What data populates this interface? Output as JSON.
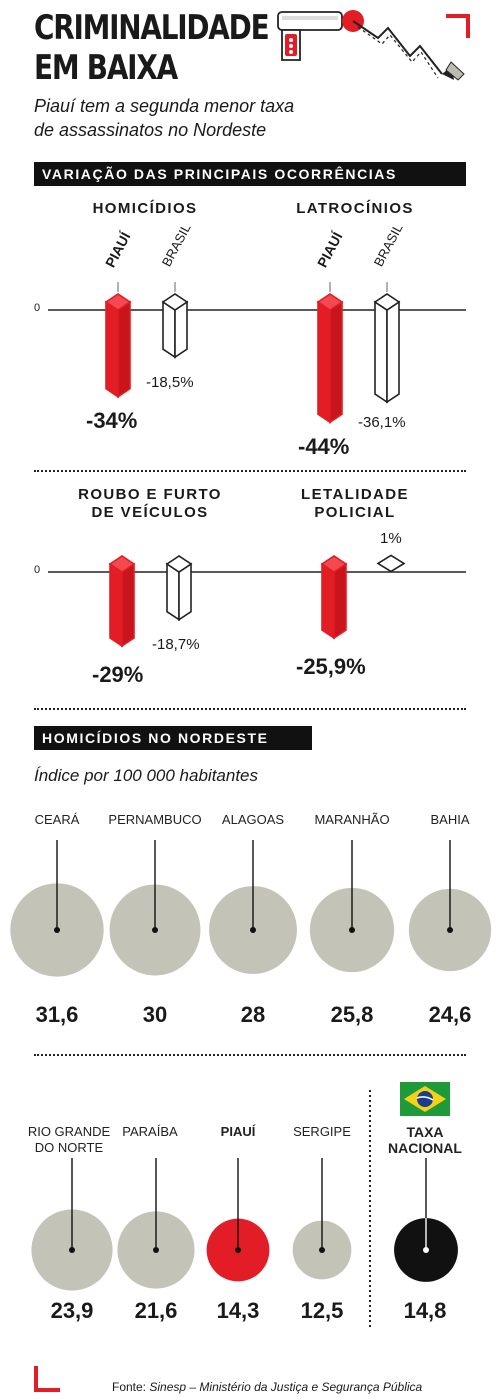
{
  "header": {
    "title_line1": "CRIMINALIDADE",
    "title_line2": "EM BAIXA",
    "subtitle_line1": "Piauí tem a segunda menor taxa",
    "subtitle_line2": "de assassinatos no Nordeste"
  },
  "section1": {
    "title": "VARIAÇÃO DAS PRINCIPAIS OCORRÊNCIAS",
    "zero_label": "0"
  },
  "section2": {
    "title": "HOMICÍDIOS NO NORDESTE",
    "index_label": "Índice por 100 000 habitantes"
  },
  "footer": {
    "source_prefix": "Fonte:",
    "source_text": "Sinesp – Ministério da Justiça e Segurança Pública"
  },
  "colors": {
    "red": "#e31d25",
    "gray": "#bdbcb0",
    "black": "#111111"
  },
  "chart_data": [
    {
      "type": "bar",
      "title": "HOMICÍDIOS",
      "series": [
        {
          "name": "PIAUÍ",
          "value": -34,
          "label": "-34%"
        },
        {
          "name": "BRASIL",
          "value": -18.5,
          "label": "-18,5%"
        }
      ],
      "unit": "%"
    },
    {
      "type": "bar",
      "title": "LATROCÍNIOS",
      "series": [
        {
          "name": "PIAUÍ",
          "value": -44,
          "label": "-44%"
        },
        {
          "name": "BRASIL",
          "value": -36.1,
          "label": "-36,1%"
        }
      ],
      "unit": "%"
    },
    {
      "type": "bar",
      "title_line1": "ROUBO E FURTO",
      "title_line2": "DE VEÍCULOS",
      "series": [
        {
          "value": -29,
          "label": "-29%"
        },
        {
          "value": -18.7,
          "label": "-18,7%"
        }
      ],
      "unit": "%"
    },
    {
      "type": "bar",
      "title_line1": "LETALIDADE",
      "title_line2": "POLICIAL",
      "series": [
        {
          "value": -25.9,
          "label": "-25,9%"
        },
        {
          "value": 1,
          "label": "1%"
        }
      ],
      "unit": "%"
    },
    {
      "type": "bubble",
      "rows": [
        [
          {
            "state": "CEARÁ",
            "value": 31.6,
            "label": "31,6"
          },
          {
            "state": "PERNAMBUCO",
            "value": 30,
            "label": "30"
          },
          {
            "state": "ALAGOAS",
            "value": 28,
            "label": "28"
          },
          {
            "state": "MARANHÃO",
            "value": 25.8,
            "label": "25,8"
          },
          {
            "state": "BAHIA",
            "value": 24.6,
            "label": "24,6"
          }
        ],
        [
          {
            "state_line1": "RIO GRANDE",
            "state_line2": "DO NORTE",
            "value": 23.9,
            "label": "23,9"
          },
          {
            "state_line1": "PARAÍBA",
            "value": 21.6,
            "label": "21,6"
          },
          {
            "state_line1": "PIAUÍ",
            "value": 14.3,
            "label": "14,3",
            "highlight": "red"
          },
          {
            "state_line1": "SERGIPE",
            "value": 12.5,
            "label": "12,5"
          },
          {
            "state_line1": "TAXA",
            "state_line2": "NACIONAL",
            "value": 14.8,
            "label": "14,8",
            "highlight": "black"
          }
        ]
      ]
    }
  ]
}
